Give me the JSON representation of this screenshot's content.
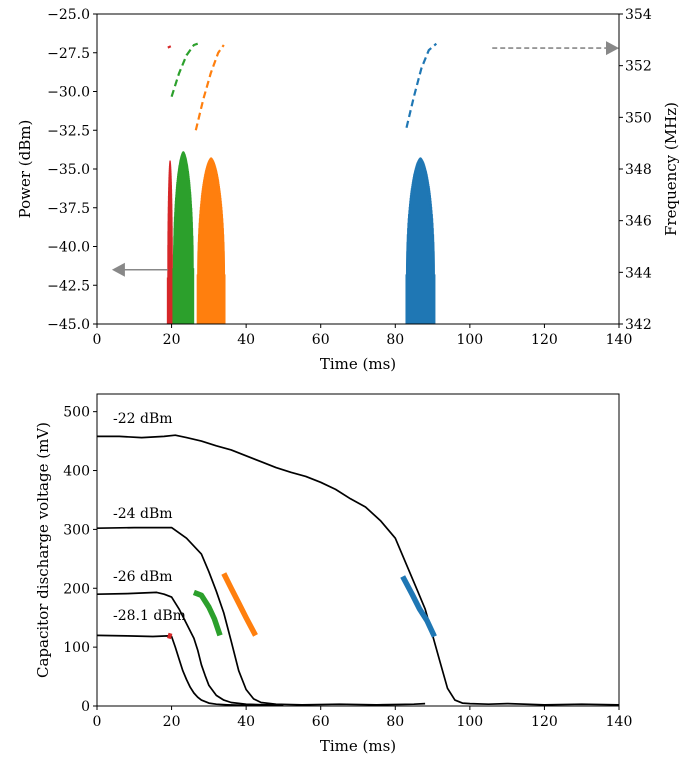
{
  "chart_data": [
    {
      "type": "line",
      "title": "",
      "xlabel": "Time (ms)",
      "ylabel": "Power (dBm)",
      "y2label": "Frequency (MHz)",
      "xlim": [
        0,
        140
      ],
      "ylim": [
        -45.0,
        -25.0
      ],
      "y2lim": [
        342,
        354
      ],
      "xticks": [
        "0",
        "20",
        "40",
        "60",
        "80",
        "100",
        "120",
        "140"
      ],
      "yticks": [
        "−45.0",
        "−42.5",
        "−40.0",
        "−37.5",
        "−35.0",
        "−32.5",
        "−30.0",
        "−27.5",
        "−25.0"
      ],
      "y2ticks": [
        "342",
        "344",
        "346",
        "348",
        "350",
        "352",
        "354"
      ],
      "grid": false,
      "colors": {
        "red": "#d62728",
        "green": "#2ca02c",
        "orange": "#ff7f0e",
        "blue": "#1f77b4",
        "arrow": "#888888"
      },
      "power_bursts": [
        {
          "color": "red",
          "x": [
            19.0,
            20.2
          ],
          "peak": -35.0
        },
        {
          "color": "green",
          "x": [
            20.5,
            25.8
          ],
          "peak": -34.4
        },
        {
          "color": "orange",
          "x": [
            27.0,
            34.2
          ],
          "peak": -34.8
        },
        {
          "color": "blue",
          "x": [
            83.0,
            90.5
          ],
          "peak": -34.8
        }
      ],
      "frequency_sweeps_dashed": [
        {
          "color": "red",
          "x": [
            19.0,
            19.8
          ],
          "y": [
            352.7,
            352.75
          ]
        },
        {
          "color": "green",
          "x": [
            20.0,
            22.0,
            24.0,
            26.0,
            27.0
          ],
          "y": [
            350.8,
            351.7,
            352.4,
            352.8,
            352.85
          ]
        },
        {
          "color": "orange",
          "x": [
            26.5,
            28.5,
            30.5,
            32.5,
            34.0
          ],
          "y": [
            349.5,
            350.7,
            351.7,
            352.5,
            352.8
          ]
        },
        {
          "color": "blue",
          "x": [
            83.0,
            85.0,
            87.0,
            89.0,
            91.0
          ],
          "y": [
            349.6,
            350.8,
            351.9,
            352.6,
            352.85
          ]
        }
      ],
      "axis_arrows": [
        {
          "points_to": "left axis (Power)",
          "x_from": 19,
          "x_to": 4,
          "y": -41.5,
          "style": "solid"
        },
        {
          "points_to": "right axis (Frequency)",
          "x_from": 106,
          "x_to": 140,
          "y": -27.2,
          "style": "dashed"
        }
      ]
    },
    {
      "type": "line",
      "title": "",
      "xlabel": "Time (ms)",
      "ylabel": "Capacitor discharge voltage (mV)",
      "xlim": [
        0,
        140
      ],
      "ylim": [
        0,
        530
      ],
      "xticks": [
        "0",
        "20",
        "40",
        "60",
        "80",
        "100",
        "120",
        "140"
      ],
      "yticks": [
        "0",
        "100",
        "200",
        "300",
        "400",
        "500"
      ],
      "grid": false,
      "series": [
        {
          "label": "-22 dBm",
          "color": "#000000",
          "x": [
            0,
            6,
            12,
            18,
            21,
            24,
            28,
            32,
            36,
            40,
            44,
            48,
            52,
            56,
            60,
            64,
            68,
            72,
            76,
            80,
            83,
            86,
            88,
            90,
            92,
            94,
            96,
            98,
            100,
            105,
            110,
            120,
            130,
            140
          ],
          "y": [
            458,
            458,
            456,
            458,
            460,
            456,
            450,
            442,
            435,
            425,
            415,
            405,
            397,
            390,
            380,
            368,
            352,
            338,
            315,
            285,
            240,
            195,
            165,
            120,
            75,
            30,
            10,
            5,
            4,
            3,
            4,
            2,
            3,
            2
          ]
        },
        {
          "label": "-24 dBm",
          "color": "#000000",
          "x": [
            0,
            10,
            20,
            24,
            28,
            30,
            32,
            34,
            36,
            38,
            40,
            42,
            44,
            48,
            55,
            65,
            75,
            85,
            88
          ],
          "y": [
            302,
            303,
            303,
            285,
            258,
            228,
            195,
            158,
            110,
            60,
            28,
            12,
            6,
            3,
            2,
            3,
            2,
            3,
            4
          ]
        },
        {
          "label": "-26 dBm",
          "color": "#000000",
          "x": [
            0,
            8,
            16,
            18,
            20,
            22,
            24,
            26,
            27,
            28,
            29,
            30,
            32,
            34,
            36,
            40,
            45,
            50
          ],
          "y": [
            190,
            191,
            193,
            190,
            185,
            165,
            140,
            115,
            95,
            70,
            52,
            35,
            18,
            10,
            6,
            3,
            2,
            2
          ]
        },
        {
          "label": "-28.1 dBm",
          "color": "#000000",
          "x": [
            0,
            8,
            15,
            19,
            20,
            21,
            22,
            23,
            24,
            25,
            26,
            27,
            28,
            30,
            32,
            35,
            40,
            45
          ],
          "y": [
            120,
            119,
            118,
            119,
            118,
            100,
            80,
            60,
            45,
            32,
            22,
            15,
            10,
            5,
            3,
            2,
            1,
            1
          ]
        }
      ],
      "highlights": [
        {
          "color": "red",
          "x": [
            19.0,
            20.0
          ],
          "y": [
            120,
            118
          ]
        },
        {
          "color": "green",
          "x": [
            26.0,
            28.0,
            30.0,
            31.5,
            33.0
          ],
          "y": [
            193,
            188,
            168,
            148,
            120
          ]
        },
        {
          "color": "orange",
          "x": [
            34.0,
            36.0,
            38.0,
            40.0,
            42.5
          ],
          "y": [
            225,
            200,
            175,
            150,
            120
          ]
        },
        {
          "color": "blue",
          "x": [
            82.0,
            84.5,
            86.5,
            88.5,
            90.5
          ],
          "y": [
            220,
            190,
            165,
            145,
            118
          ]
        }
      ]
    }
  ]
}
